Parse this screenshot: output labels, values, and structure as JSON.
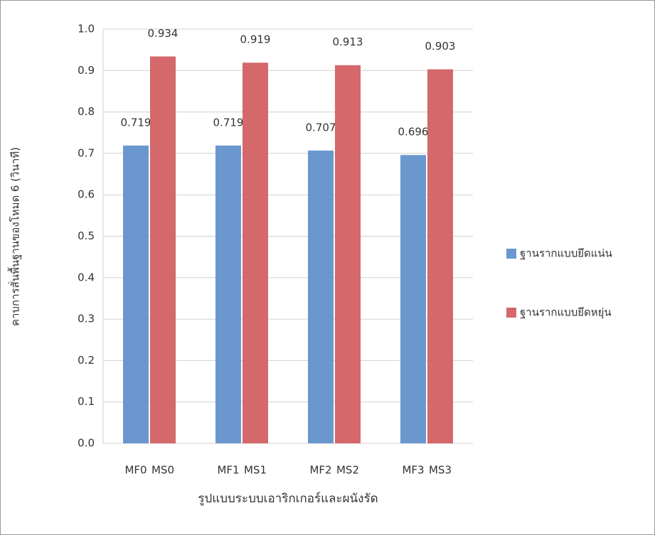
{
  "chart_data": {
    "type": "bar",
    "y_label": "คาบการสั่นพื้นฐานของโหมด 6 (วินาที)",
    "x_label": "รูปแบบระบบเอาริกเกอร์และผนังรัด",
    "series": [
      {
        "name": "ฐานรากแบบยึดแน่น",
        "color": "#6b97cf",
        "labels": [
          "MF0",
          "MF1",
          "MF2",
          "MF3"
        ],
        "values": [
          0.719,
          0.719,
          0.707,
          0.696
        ]
      },
      {
        "name": "ฐานรากแบบยึดหยุ่น",
        "color": "#d4686a",
        "labels": [
          "MS0",
          "MS1",
          "MS2",
          "MS3"
        ],
        "values": [
          0.934,
          0.919,
          0.913,
          0.903
        ]
      }
    ],
    "ylim": [
      0,
      1
    ],
    "yticks": [
      {
        "value": 0,
        "label": "0.0"
      },
      0.1,
      0.2,
      0.3,
      0.4,
      0.5,
      0.6,
      0.7,
      0.8,
      0.9,
      {
        "value": 1,
        "label": "1.0"
      }
    ],
    "grid": true,
    "legend": "right"
  }
}
